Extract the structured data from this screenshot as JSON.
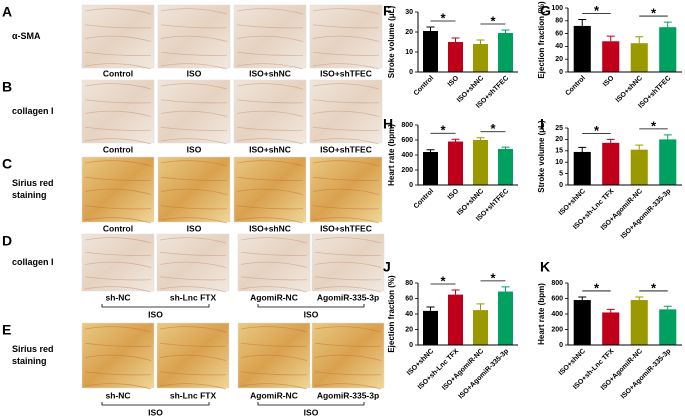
{
  "image_panels": [
    {
      "panel": "A",
      "row_label": [
        "α-SMA"
      ],
      "captions": [
        "Control",
        "ISO",
        "ISO+shNC",
        "ISO+shTFEC"
      ],
      "stain": "ihc"
    },
    {
      "panel": "B",
      "row_label": [
        "collagen I"
      ],
      "captions": [
        "Control",
        "ISO",
        "ISO+shNC",
        "ISO+shTFEC"
      ],
      "stain": "ihc"
    },
    {
      "panel": "C",
      "row_label": [
        "Sirius red",
        "staining"
      ],
      "captions": [
        "Control",
        "ISO",
        "ISO+shNC",
        "ISO+shTFEC"
      ],
      "stain": "sirius"
    },
    {
      "panel": "D",
      "row_label": [
        "collagen I"
      ],
      "captions": [
        "sh-NC",
        "sh-Lnc FTX",
        "AgomiR-NC",
        "AgomiR-335-3p"
      ],
      "stain": "ihc",
      "group_labels": [
        "ISO",
        "ISO"
      ]
    },
    {
      "panel": "E",
      "row_label": [
        "Sirius red",
        "staining"
      ],
      "captions": [
        "sh-NC",
        "sh-Lnc FTX",
        "AgomiR-NC",
        "AgomiR-335-3p"
      ],
      "stain": "sirius",
      "group_labels": [
        "ISO",
        "ISO"
      ]
    }
  ],
  "chart_data": [
    {
      "type": "bar",
      "panel": "F",
      "y_label": "Stroke volume (μL)",
      "categories": [
        "Control",
        "ISO",
        "ISO+shNC",
        "ISO+shTFEC"
      ],
      "values": [
        20.5,
        15,
        14,
        19.5
      ],
      "errors": [
        2,
        2,
        2,
        1.5
      ],
      "colors": [
        "#000000",
        "#c0001a",
        "#9a9a00",
        "#00a060"
      ],
      "ylim": [
        0,
        30
      ],
      "yticks": [
        0,
        10,
        20,
        30
      ],
      "significance": [
        {
          "label": "*",
          "pair": [
            "Control",
            "ISO"
          ]
        },
        {
          "label": "*",
          "pair": [
            "ISO+shNC",
            "ISO+shTFEC"
          ]
        }
      ]
    },
    {
      "type": "bar",
      "panel": "G",
      "y_label": "Ejection fraction (%)",
      "categories": [
        "Control",
        "ISO",
        "ISO+shNC",
        "ISO+shTFEC"
      ],
      "values": [
        72,
        48,
        45,
        70
      ],
      "errors": [
        10,
        8,
        10,
        8
      ],
      "colors": [
        "#000000",
        "#c0001a",
        "#9a9a00",
        "#00a060"
      ],
      "ylim": [
        0,
        100
      ],
      "yticks": [
        0,
        20,
        40,
        60,
        80,
        100
      ],
      "significance": [
        {
          "label": "*",
          "pair": [
            "Control",
            "ISO"
          ]
        },
        {
          "label": "*",
          "pair": [
            "ISO+shNC",
            "ISO+shTFEC"
          ]
        }
      ]
    },
    {
      "type": "bar",
      "panel": "H",
      "y_label": "Heart rate (bpm)",
      "categories": [
        "Control",
        "ISO",
        "ISO+shNC",
        "ISO+shTFEC"
      ],
      "values": [
        440,
        580,
        600,
        480
      ],
      "errors": [
        30,
        30,
        30,
        25
      ],
      "colors": [
        "#000000",
        "#c0001a",
        "#9a9a00",
        "#00a060"
      ],
      "ylim": [
        0,
        800
      ],
      "yticks": [
        0,
        200,
        400,
        600,
        800
      ],
      "significance": [
        {
          "label": "*",
          "pair": [
            "Control",
            "ISO"
          ]
        },
        {
          "label": "*",
          "pair": [
            "ISO+shNC",
            "ISO+shTFEC"
          ]
        }
      ]
    },
    {
      "type": "bar",
      "panel": "I",
      "y_label": "Stroke volume (μL)",
      "categories": [
        "ISO+shNC",
        "ISO+sh-Lnc TFX",
        "ISO+AgomiR-NC",
        "ISO+AgomiR-335-3p"
      ],
      "values": [
        14.5,
        18.5,
        15.5,
        20
      ],
      "errors": [
        2,
        1.5,
        2,
        2
      ],
      "colors": [
        "#000000",
        "#c0001a",
        "#9a9a00",
        "#00a060"
      ],
      "ylim": [
        0,
        25
      ],
      "yticks": [
        0,
        5,
        10,
        15,
        20,
        25
      ],
      "significance": [
        {
          "label": "*",
          "pair": [
            "ISO+shNC",
            "ISO+sh-Lnc TFX"
          ]
        },
        {
          "label": "*",
          "pair": [
            "ISO+AgomiR-NC",
            "ISO+AgomiR-335-3p"
          ]
        }
      ]
    },
    {
      "type": "bar",
      "panel": "J",
      "y_label": "Ejection fraction (%)",
      "categories": [
        "ISO+shNC",
        "ISO+sh-Lnc TFX",
        "ISO+AgomiR-NC",
        "ISO+AgomiR-335-3p"
      ],
      "values": [
        44,
        65,
        45,
        69
      ],
      "errors": [
        5,
        6,
        8,
        6
      ],
      "colors": [
        "#000000",
        "#c0001a",
        "#9a9a00",
        "#00a060"
      ],
      "ylim": [
        0,
        80
      ],
      "yticks": [
        0,
        20,
        40,
        60,
        80
      ],
      "significance": [
        {
          "label": "*",
          "pair": [
            "ISO+shNC",
            "ISO+sh-Lnc TFX"
          ]
        },
        {
          "label": "*",
          "pair": [
            "ISO+AgomiR-NC",
            "ISO+AgomiR-335-3p"
          ]
        }
      ]
    },
    {
      "type": "bar",
      "panel": "K",
      "y_label": "Heart rate (bpm)",
      "categories": [
        "ISO+shNC",
        "ISO+sh-Lnc TFX",
        "ISO+AgomiR-NC",
        "ISO+AgomiR-335-3p"
      ],
      "values": [
        580,
        420,
        580,
        460
      ],
      "errors": [
        40,
        40,
        40,
        40
      ],
      "colors": [
        "#000000",
        "#c0001a",
        "#9a9a00",
        "#00a060"
      ],
      "ylim": [
        0,
        800
      ],
      "yticks": [
        0,
        200,
        400,
        600,
        800
      ],
      "significance": [
        {
          "label": "*",
          "pair": [
            "ISO+shNC",
            "ISO+sh-Lnc TFX"
          ]
        },
        {
          "label": "*",
          "pair": [
            "ISO+AgomiR-NC",
            "ISO+AgomiR-335-3p"
          ]
        }
      ]
    }
  ]
}
